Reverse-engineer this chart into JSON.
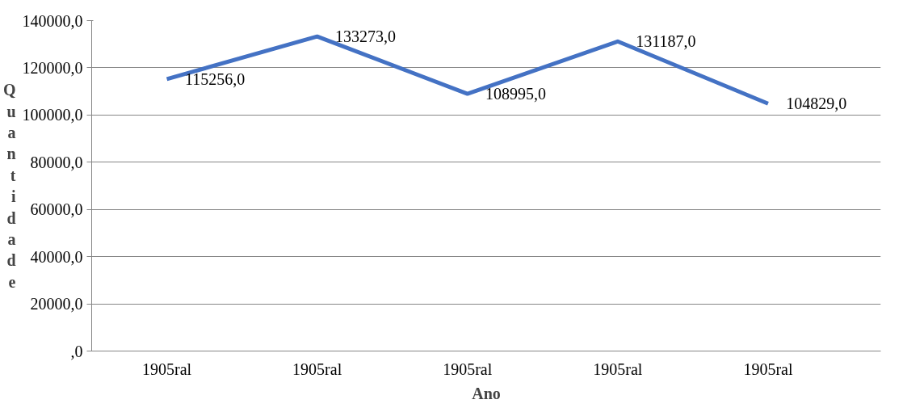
{
  "chart_data": {
    "type": "line",
    "xlabel": "Ano",
    "ylabel": "Quantidade",
    "categories": [
      "1905ral",
      "1905ral",
      "1905ral",
      "1905ral",
      "1905ral"
    ],
    "series": [
      {
        "color": "#4472c4",
        "values": [
          115256,
          133273,
          108995,
          131187,
          104829
        ],
        "value_labels": [
          "115256,0",
          "133273,0",
          "108995,0",
          "131187,0",
          "104829,0"
        ]
      }
    ],
    "ylim": [
      0,
      140000
    ],
    "yticks": [
      {
        "value": 0,
        "label": ",0"
      },
      {
        "value": 20000,
        "label": "20000,0"
      },
      {
        "value": 40000,
        "label": "40000,0"
      },
      {
        "value": 60000,
        "label": "60000,0"
      },
      {
        "value": 80000,
        "label": "80000,0"
      },
      {
        "value": 100000,
        "label": "100000,0"
      },
      {
        "value": 120000,
        "label": "120000,0"
      },
      {
        "value": 140000,
        "label": "140000,0"
      }
    ],
    "grid": "y",
    "marker": "none",
    "line_style": "solid"
  }
}
